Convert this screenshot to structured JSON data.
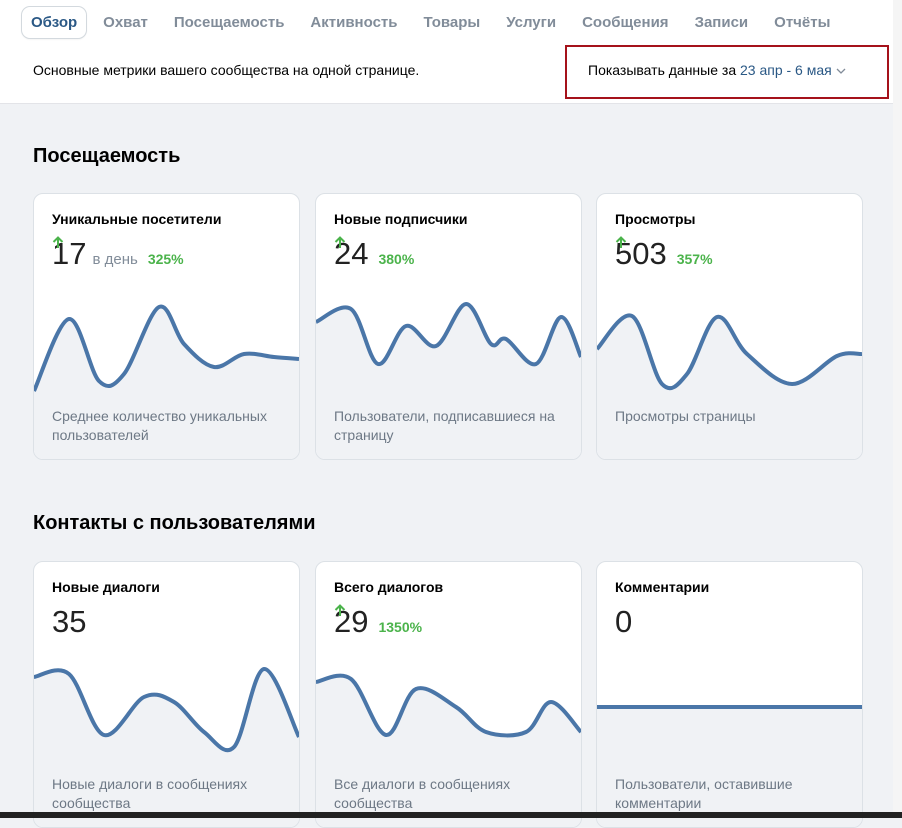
{
  "tabs": [
    "Обзор",
    "Охват",
    "Посещаемость",
    "Активность",
    "Товары",
    "Услуги",
    "Сообщения",
    "Записи",
    "Отчёты"
  ],
  "header": {
    "description": "Основные метрики вашего сообщества на одной странице.",
    "filter_label": "Показывать данные за",
    "filter_range": "23 апр - 6 мая"
  },
  "sections": [
    {
      "title": "Посещаемость",
      "cards": [
        {
          "title": "Уникальные посетители",
          "value": 17,
          "unit": "в день",
          "change": "325%",
          "description": "Среднее количество уникальных пользователей"
        },
        {
          "title": "Новые подписчики",
          "value": 24,
          "change": "380%",
          "description": "Пользователи, подписавшиеся на страницу"
        },
        {
          "title": "Просмотры",
          "value": 503,
          "change": "357%",
          "description": "Просмотры страницы"
        }
      ]
    },
    {
      "title": "Контакты с пользователями",
      "cards": [
        {
          "title": "Новые диалоги",
          "value": 35,
          "description": "Новые диалоги в сообщениях сообщества"
        },
        {
          "title": "Всего диалогов",
          "value": 29,
          "change": "1350%",
          "description": "Все диалоги в сообщениях сообщества"
        },
        {
          "title": "Комментарии",
          "value": 0,
          "description": "Пользователи, оставившие комментарии"
        }
      ]
    }
  ]
}
